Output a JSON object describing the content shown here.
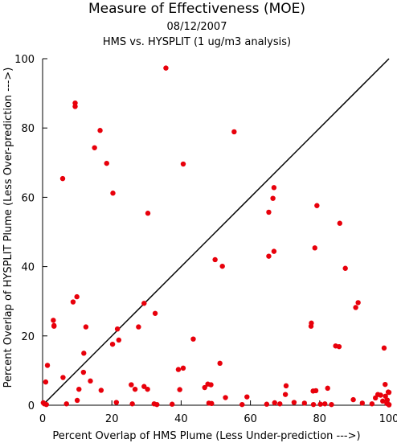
{
  "chart_data": {
    "type": "scatter",
    "title": "Measure of Effectiveness (MOE)",
    "subtitle_date": "08/12/2007",
    "subtitle_analysis": "HMS vs. HYSPLIT  (1 ug/m3 analysis)",
    "xlabel": "Percent Overlap of HMS Plume (Less Under-prediction --->)",
    "ylabel": "Percent Overlap of HYSPLIT Plume (Less Over-prediction --->)",
    "xlim": [
      0,
      100
    ],
    "ylim": [
      0,
      100
    ],
    "xticks": [
      0,
      20,
      40,
      60,
      80,
      100
    ],
    "yticks": [
      0,
      20,
      40,
      60,
      80,
      100
    ],
    "reference_line": "y = x",
    "point_color": "#e8000b",
    "grid": false,
    "points": [
      [
        35.6,
        97.3
      ],
      [
        9.4,
        87.2
      ],
      [
        9.4,
        86.2
      ],
      [
        16.6,
        79.3
      ],
      [
        55.3,
        78.9
      ],
      [
        15.0,
        74.3
      ],
      [
        18.5,
        69.8
      ],
      [
        40.6,
        69.6
      ],
      [
        5.8,
        65.4
      ],
      [
        66.8,
        62.8
      ],
      [
        66.5,
        59.7
      ],
      [
        20.3,
        61.2
      ],
      [
        79.2,
        57.6
      ],
      [
        30.4,
        55.4
      ],
      [
        65.3,
        55.7
      ],
      [
        85.8,
        52.5
      ],
      [
        78.6,
        45.4
      ],
      [
        66.8,
        44.4
      ],
      [
        65.3,
        43.0
      ],
      [
        49.8,
        42.0
      ],
      [
        51.9,
        40.1
      ],
      [
        87.4,
        39.5
      ],
      [
        9.9,
        31.3
      ],
      [
        8.8,
        29.8
      ],
      [
        29.3,
        29.4
      ],
      [
        91.1,
        29.6
      ],
      [
        90.4,
        28.2
      ],
      [
        3.1,
        24.5
      ],
      [
        3.3,
        23.0
      ],
      [
        3.3,
        22.8
      ],
      [
        77.6,
        23.7
      ],
      [
        77.5,
        22.8
      ],
      [
        12.5,
        22.6
      ],
      [
        21.6,
        22.0
      ],
      [
        27.7,
        22.6
      ],
      [
        32.5,
        26.5
      ],
      [
        43.5,
        19.1
      ],
      [
        22.0,
        18.8
      ],
      [
        20.2,
        17.6
      ],
      [
        84.6,
        17.1
      ],
      [
        85.6,
        16.9
      ],
      [
        98.6,
        16.5
      ],
      [
        11.9,
        15.0
      ],
      [
        1.4,
        11.5
      ],
      [
        51.2,
        12.1
      ],
      [
        40.6,
        10.7
      ],
      [
        39.2,
        10.3
      ],
      [
        11.8,
        9.5
      ],
      [
        13.8,
        7.0
      ],
      [
        0.9,
        6.7
      ],
      [
        5.9,
        8.0
      ],
      [
        10.5,
        4.6
      ],
      [
        16.9,
        4.3
      ],
      [
        25.6,
        5.9
      ],
      [
        26.7,
        4.6
      ],
      [
        29.3,
        5.4
      ],
      [
        30.3,
        4.6
      ],
      [
        39.6,
        4.5
      ],
      [
        46.8,
        5.1
      ],
      [
        47.7,
        6.1
      ],
      [
        48.6,
        5.9
      ],
      [
        70.3,
        5.6
      ],
      [
        78.1,
        4.1
      ],
      [
        78.9,
        4.2
      ],
      [
        82.3,
        4.9
      ],
      [
        98.9,
        6.0
      ],
      [
        99.8,
        3.8
      ],
      [
        100.0,
        3.7
      ],
      [
        96.8,
        3.1
      ],
      [
        96.1,
        2.1
      ],
      [
        97.6,
        2.9
      ],
      [
        99.0,
        2.6
      ],
      [
        99.5,
        1.5
      ],
      [
        98.2,
        1.2
      ],
      [
        70.1,
        3.1
      ],
      [
        0.2,
        0.7
      ],
      [
        0.5,
        0.4
      ],
      [
        1.1,
        0.2
      ],
      [
        6.9,
        0.4
      ],
      [
        10.0,
        1.4
      ],
      [
        21.3,
        0.8
      ],
      [
        25.9,
        0.4
      ],
      [
        32.2,
        0.4
      ],
      [
        33.0,
        0.2
      ],
      [
        37.4,
        0.3
      ],
      [
        48.0,
        0.6
      ],
      [
        48.8,
        0.5
      ],
      [
        52.8,
        2.2
      ],
      [
        57.6,
        0.2
      ],
      [
        59.0,
        2.4
      ],
      [
        64.7,
        0.3
      ],
      [
        67.0,
        0.7
      ],
      [
        68.5,
        0.4
      ],
      [
        72.6,
        0.8
      ],
      [
        75.6,
        0.6
      ],
      [
        78.2,
        0.2
      ],
      [
        80.2,
        0.3
      ],
      [
        81.5,
        0.4
      ],
      [
        83.4,
        0.2
      ],
      [
        89.7,
        1.6
      ],
      [
        92.3,
        0.6
      ],
      [
        95.1,
        0.4
      ],
      [
        99.4,
        0.5
      ],
      [
        100.0,
        0.2
      ],
      [
        100.0,
        0.1
      ]
    ]
  }
}
